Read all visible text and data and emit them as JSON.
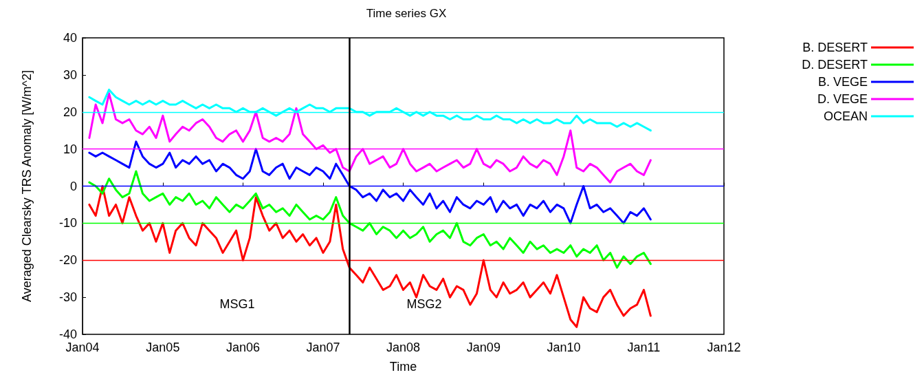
{
  "chart_data": {
    "type": "line",
    "title": "Time series GX",
    "xlabel": "Time",
    "ylabel": "Averaged Clearsky TRS Anomaly [W/m^2]",
    "x": [
      "2004-02",
      "2004-03",
      "2004-04",
      "2004-05",
      "2004-06",
      "2004-07",
      "2004-08",
      "2004-09",
      "2004-10",
      "2004-11",
      "2004-12",
      "2005-01",
      "2005-02",
      "2005-03",
      "2005-04",
      "2005-05",
      "2005-06",
      "2005-07",
      "2005-08",
      "2005-09",
      "2005-10",
      "2005-11",
      "2005-12",
      "2006-01",
      "2006-02",
      "2006-03",
      "2006-04",
      "2006-05",
      "2006-06",
      "2006-07",
      "2006-08",
      "2006-09",
      "2006-10",
      "2006-11",
      "2006-12",
      "2007-01",
      "2007-02",
      "2007-03",
      "2007-04",
      "2007-05",
      "2007-06",
      "2007-07",
      "2007-08",
      "2007-09",
      "2007-10",
      "2007-11",
      "2007-12",
      "2008-01",
      "2008-02",
      "2008-03",
      "2008-04",
      "2008-05",
      "2008-06",
      "2008-07",
      "2008-08",
      "2008-09",
      "2008-10",
      "2008-11",
      "2008-12",
      "2009-01",
      "2009-02",
      "2009-03",
      "2009-04",
      "2009-05",
      "2009-06",
      "2009-07",
      "2009-08",
      "2009-09",
      "2009-10",
      "2009-11",
      "2009-12",
      "2010-01",
      "2010-02",
      "2010-03",
      "2010-04",
      "2010-05",
      "2010-06",
      "2010-07",
      "2010-08",
      "2010-09",
      "2010-10",
      "2010-11",
      "2010-12",
      "2011-01",
      "2011-02"
    ],
    "series": [
      {
        "name": "B. DESERT",
        "color": "#ff0000",
        "values": [
          -5,
          -8,
          0,
          -8,
          -5,
          -10,
          -3,
          -8,
          -12,
          -10,
          -15,
          -10,
          -18,
          -12,
          -10,
          -14,
          -16,
          -10,
          -12,
          -14,
          -18,
          -15,
          -12,
          -20,
          -14,
          -3,
          -8,
          -12,
          -10,
          -14,
          -12,
          -15,
          -13,
          -16,
          -14,
          -18,
          -15,
          -5,
          -17,
          -22,
          -24,
          -26,
          -22,
          -25,
          -28,
          -27,
          -24,
          -28,
          -26,
          -30,
          -24,
          -27,
          -28,
          -25,
          -30,
          -27,
          -28,
          -32,
          -29,
          -20,
          -28,
          -30,
          -26,
          -29,
          -28,
          -26,
          -30,
          -28,
          -26,
          -29,
          -24,
          -30,
          -36,
          -38,
          -30,
          -33,
          -34,
          -30,
          -28,
          -32,
          -35,
          -33,
          -32,
          -28,
          -35
        ]
      },
      {
        "name": "D. DESERT",
        "color": "#00ff00",
        "values": [
          1,
          0,
          -2,
          2,
          -1,
          -3,
          -2,
          4,
          -2,
          -4,
          -3,
          -2,
          -5,
          -3,
          -4,
          -2,
          -5,
          -4,
          -6,
          -3,
          -5,
          -7,
          -5,
          -6,
          -4,
          -2,
          -6,
          -5,
          -7,
          -6,
          -8,
          -5,
          -7,
          -9,
          -8,
          -9,
          -7,
          -3,
          -8,
          -10,
          -11,
          -12,
          -10,
          -13,
          -11,
          -12,
          -14,
          -12,
          -14,
          -13,
          -11,
          -15,
          -13,
          -12,
          -14,
          -10,
          -15,
          -16,
          -14,
          -13,
          -16,
          -15,
          -17,
          -14,
          -16,
          -18,
          -15,
          -17,
          -16,
          -18,
          -17,
          -18,
          -16,
          -19,
          -17,
          -18,
          -16,
          -20,
          -18,
          -22,
          -19,
          -21,
          -19,
          -18,
          -21
        ]
      },
      {
        "name": "B. VEGE",
        "color": "#0000ff",
        "values": [
          9,
          8,
          9,
          8,
          7,
          6,
          5,
          12,
          8,
          6,
          5,
          6,
          9,
          5,
          7,
          6,
          8,
          6,
          7,
          4,
          6,
          5,
          3,
          2,
          4,
          10,
          4,
          3,
          5,
          6,
          2,
          5,
          4,
          3,
          5,
          4,
          2,
          6,
          3,
          0,
          -1,
          -3,
          -2,
          -4,
          -1,
          -3,
          -2,
          -4,
          -1,
          -3,
          -5,
          -2,
          -6,
          -4,
          -7,
          -3,
          -5,
          -6,
          -4,
          -5,
          -3,
          -7,
          -4,
          -6,
          -5,
          -8,
          -5,
          -6,
          -4,
          -7,
          -5,
          -6,
          -10,
          -5,
          0,
          -6,
          -5,
          -7,
          -6,
          -8,
          -10,
          -7,
          -8,
          -6,
          -9
        ]
      },
      {
        "name": "D. VEGE",
        "color": "#ff00ff",
        "values": [
          13,
          22,
          17,
          25,
          18,
          17,
          18,
          15,
          14,
          16,
          13,
          19,
          12,
          14,
          16,
          15,
          17,
          18,
          16,
          13,
          12,
          14,
          15,
          12,
          15,
          20,
          13,
          12,
          13,
          12,
          14,
          21,
          14,
          12,
          10,
          11,
          9,
          10,
          5,
          4,
          8,
          10,
          6,
          7,
          8,
          5,
          6,
          10,
          6,
          4,
          5,
          6,
          4,
          5,
          6,
          7,
          5,
          6,
          10,
          6,
          5,
          7,
          6,
          4,
          5,
          8,
          6,
          5,
          7,
          6,
          3,
          8,
          15,
          5,
          4,
          6,
          5,
          3,
          1,
          4,
          5,
          6,
          4,
          3,
          7
        ]
      },
      {
        "name": "OCEAN",
        "color": "#00ffff",
        "values": [
          24,
          23,
          22,
          26,
          24,
          23,
          22,
          23,
          22,
          23,
          22,
          23,
          22,
          22,
          23,
          22,
          21,
          22,
          21,
          22,
          21,
          21,
          20,
          21,
          20,
          20,
          21,
          20,
          19,
          20,
          21,
          20,
          21,
          22,
          21,
          21,
          20,
          21,
          21,
          21,
          20,
          20,
          19,
          20,
          20,
          20,
          21,
          20,
          19,
          20,
          19,
          20,
          19,
          19,
          18,
          19,
          18,
          18,
          19,
          18,
          18,
          19,
          18,
          18,
          17,
          18,
          17,
          18,
          17,
          17,
          18,
          17,
          17,
          19,
          17,
          18,
          17,
          17,
          17,
          16,
          17,
          16,
          17,
          16,
          15
        ]
      }
    ],
    "xlim": [
      "2004-01",
      "2012-01"
    ],
    "xticks": [
      {
        "value": "2004-01",
        "label": "Jan04"
      },
      {
        "value": "2005-01",
        "label": "Jan05"
      },
      {
        "value": "2006-01",
        "label": "Jan06"
      },
      {
        "value": "2007-01",
        "label": "Jan07"
      },
      {
        "value": "2008-01",
        "label": "Jan08"
      },
      {
        "value": "2009-01",
        "label": "Jan09"
      },
      {
        "value": "2010-01",
        "label": "Jan10"
      },
      {
        "value": "2011-01",
        "label": "Jan11"
      },
      {
        "value": "2012-01",
        "label": "Jan12"
      }
    ],
    "ylim": [
      -40,
      40
    ],
    "yticks": [
      -40,
      -30,
      -20,
      -10,
      0,
      10,
      20,
      30,
      40
    ],
    "ref_lines": [
      {
        "axis": "y",
        "value": 20,
        "color": "#00ffff"
      },
      {
        "axis": "y",
        "value": 10,
        "color": "#ff00ff"
      },
      {
        "axis": "y",
        "value": 0,
        "color": "#0000ff"
      },
      {
        "axis": "y",
        "value": -10,
        "color": "#00ff00"
      },
      {
        "axis": "y",
        "value": -20,
        "color": "#ff0000"
      },
      {
        "axis": "x",
        "value": "2007-05",
        "color": "#000000"
      }
    ],
    "annotations": [
      "MSG1",
      "MSG2"
    ],
    "grid": false,
    "legend": "right",
    "marker": "none",
    "line_style": "solid"
  }
}
